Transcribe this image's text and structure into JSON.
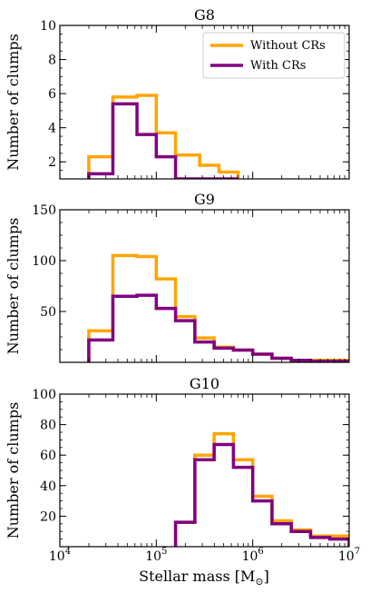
{
  "xlabel": "Stellar mass [M",
  "xlabel_sub": "⊙",
  "xlabel_close": "]",
  "x_tick_labels": [
    {
      "base": "10",
      "exp": "4"
    },
    {
      "base": "10",
      "exp": "5"
    },
    {
      "base": "10",
      "exp": "6"
    },
    {
      "base": "10",
      "exp": "7"
    }
  ],
  "colors": {
    "without": "#FFA500",
    "with": "#800080"
  },
  "legend": {
    "without": "Without CRs",
    "with": "With CRs"
  },
  "chart_data": [
    {
      "type": "histogram",
      "title": "G8",
      "ylabel": "Number of clumps",
      "xscale": "log",
      "xlim": [
        10000,
        10000000
      ],
      "ylim": [
        1,
        10
      ],
      "y_ticks": [
        2,
        4,
        6,
        8,
        10
      ],
      "y_tick_labels": [
        "2",
        "4",
        "6",
        "8",
        "10"
      ],
      "legend_placement": "top-right",
      "bin_edges_log10": [
        4.3,
        4.55,
        4.8,
        5.0,
        5.2,
        5.45,
        5.65,
        5.85
      ],
      "series": [
        {
          "name": "Without CRs",
          "values": [
            2.3,
            5.8,
            5.9,
            3.7,
            2.4,
            1.8,
            1.4
          ]
        },
        {
          "name": "With CRs",
          "values": [
            1.3,
            5.4,
            3.6,
            2.3,
            1.0,
            1.0,
            1.0
          ]
        }
      ]
    },
    {
      "type": "histogram",
      "title": "G9",
      "ylabel": "Number of clumps",
      "xscale": "log",
      "xlim": [
        10000,
        10000000
      ],
      "ylim": [
        0,
        150
      ],
      "y_ticks": [
        50,
        100,
        150
      ],
      "y_tick_labels": [
        "50",
        "100",
        "150"
      ],
      "bin_edges_log10": [
        4.3,
        4.55,
        4.8,
        5.0,
        5.2,
        5.4,
        5.6,
        5.8,
        6.0,
        6.2,
        6.4,
        6.6,
        6.8,
        7.0
      ],
      "series": [
        {
          "name": "Without CRs",
          "values": [
            31,
            105,
            104,
            82,
            45,
            24,
            15,
            12,
            8,
            4,
            2,
            2,
            2
          ]
        },
        {
          "name": "With CRs",
          "values": [
            22,
            65,
            66,
            53,
            41,
            20,
            14,
            12,
            8,
            4,
            2,
            1,
            1
          ]
        }
      ]
    },
    {
      "type": "histogram",
      "title": "G10",
      "ylabel": "Number of clumps",
      "xscale": "log",
      "xlim": [
        10000,
        10000000
      ],
      "ylim": [
        0,
        100
      ],
      "y_ticks": [
        20,
        40,
        60,
        80,
        100
      ],
      "y_tick_labels": [
        "20",
        "40",
        "60",
        "80",
        "100"
      ],
      "bin_edges_log10": [
        5.2,
        5.4,
        5.6,
        5.8,
        6.0,
        6.2,
        6.4,
        6.6,
        6.8,
        7.0
      ],
      "series": [
        {
          "name": "Without CRs",
          "values": [
            16,
            60,
            74,
            57,
            33,
            17,
            11,
            7,
            7
          ]
        },
        {
          "name": "With CRs",
          "values": [
            16,
            57,
            67,
            52,
            30,
            15,
            10,
            6,
            5
          ]
        }
      ]
    }
  ]
}
